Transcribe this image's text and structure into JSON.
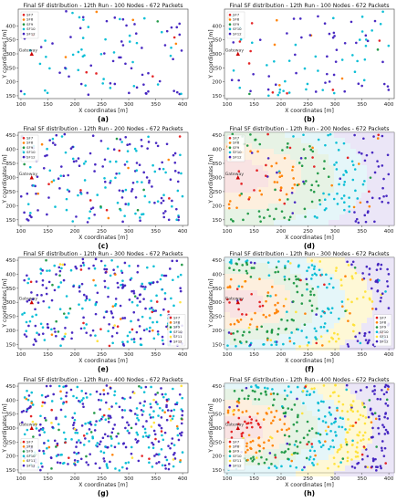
{
  "chart_data": [
    {
      "panel": "(a)",
      "type": "scatter",
      "title": "Final SF distribution - 12th Run - 100 Nodes - 672 Packets",
      "xlabel": "X coordinates [m]",
      "ylabel": "Y coordinates [m]",
      "gateway_label": "Gateway",
      "xlim": [
        95,
        410
      ],
      "ylim": [
        140,
        460
      ],
      "xticks": [
        100,
        150,
        200,
        250,
        300,
        350,
        400
      ],
      "yticks": [
        150,
        200,
        250,
        300,
        350,
        400
      ],
      "legend": {
        "position": "top-left",
        "entries": [
          "SF7",
          "SF8",
          "SF9",
          "SF10",
          "SF12"
        ]
      },
      "gateway": {
        "x": 120,
        "y": 300
      },
      "node_count": 100,
      "seed": 11
    },
    {
      "panel": "(b)",
      "type": "scatter",
      "title": "Final SF distribution - 12th Run - 100 Nodes - 672 Packets",
      "xlabel": "X coordinates [m]",
      "ylabel": "Y coordinates [m]",
      "gateway_label": "Gateway",
      "xlim": [
        95,
        410
      ],
      "ylim": [
        140,
        460
      ],
      "xticks": [
        100,
        150,
        200,
        250,
        300,
        350,
        400
      ],
      "yticks": [
        150,
        200,
        250,
        300,
        350,
        400
      ],
      "legend": {
        "position": "top-left",
        "entries": [
          "SF7",
          "SF8",
          "SF9",
          "SF10",
          "SF12"
        ]
      },
      "gateway": {
        "x": 120,
        "y": 300
      },
      "node_count": 100,
      "seed": 23
    },
    {
      "panel": "(c)",
      "type": "scatter",
      "title": "Final SF distribution - 12th Run - 200 Nodes - 672 Packets",
      "xlabel": "X coordinates [m]",
      "ylabel": "Y coordinates [m]",
      "gateway_label": "Gateway",
      "xlim": [
        95,
        410
      ],
      "ylim": [
        130,
        460
      ],
      "xticks": [
        100,
        150,
        200,
        250,
        300,
        350,
        400
      ],
      "yticks": [
        150,
        200,
        250,
        300,
        350,
        400,
        450
      ],
      "legend": {
        "position": "top-left",
        "entries": [
          "SF7",
          "SF8",
          "SF9",
          "SF10",
          "SF12"
        ]
      },
      "gateway": {
        "x": 120,
        "y": 300
      },
      "node_count": 200,
      "seed": 37
    },
    {
      "panel": "(d)",
      "type": "scatter",
      "title": "Final SF distribution - 12th Run - 200 Nodes - 672 Packets",
      "xlabel": "X coordinates [m]",
      "ylabel": "Y coordinates [m]",
      "gateway_label": "Gateway",
      "xlim": [
        95,
        410
      ],
      "ylim": [
        130,
        460
      ],
      "xticks": [
        100,
        150,
        200,
        250,
        300,
        350,
        400
      ],
      "yticks": [
        150,
        200,
        250,
        300,
        350,
        400,
        450
      ],
      "legend": {
        "position": "top-left",
        "entries": [
          "SF7",
          "SF8",
          "SF9",
          "SF10",
          "SF12"
        ]
      },
      "gateway": {
        "x": 120,
        "y": 300
      },
      "node_count": 200,
      "seed": 41
    },
    {
      "panel": "(e)",
      "type": "scatter",
      "title": "Final SF distribution - 12th Run - 300 Nodes - 672 Packets",
      "xlabel": "X coordinates [m]",
      "ylabel": "Y coordinates [m]",
      "gateway_label": "Gateway",
      "xlim": [
        95,
        410
      ],
      "ylim": [
        135,
        460
      ],
      "xticks": [
        100,
        150,
        200,
        250,
        300,
        350,
        400
      ],
      "yticks": [
        150,
        200,
        250,
        300,
        350,
        400,
        450
      ],
      "legend": {
        "position": "bottom-right",
        "entries": [
          "SF7",
          "SF8",
          "SF9",
          "SF10",
          "SF11",
          "SF12"
        ]
      },
      "gateway": {
        "x": 120,
        "y": 300
      },
      "node_count": 300,
      "seed": 53
    },
    {
      "panel": "(f)",
      "type": "scatter",
      "title": "Final SF distribution - 12th Run - 300 Nodes - 672 Packets",
      "xlabel": "X coordinates [m]",
      "ylabel": "Y coordinates [m]",
      "gateway_label": "Gateway",
      "xlim": [
        95,
        410
      ],
      "ylim": [
        135,
        460
      ],
      "xticks": [
        100,
        150,
        200,
        250,
        300,
        350,
        400
      ],
      "yticks": [
        150,
        200,
        250,
        300,
        350,
        400,
        450
      ],
      "legend": {
        "position": "bottom-right",
        "entries": [
          "SF7",
          "SF8",
          "SF9",
          "SF10",
          "SF11",
          "SF12"
        ]
      },
      "gateway": {
        "x": 120,
        "y": 300
      },
      "node_count": 300,
      "seed": 67
    },
    {
      "panel": "(g)",
      "type": "scatter",
      "title": "Final SF distribution - 12th Run - 400 Nodes - 672 Packets",
      "xlabel": "X coordinates [m]",
      "ylabel": "Y coordinates [m]",
      "gateway_label": "Gateway",
      "xlim": [
        95,
        410
      ],
      "ylim": [
        140,
        460
      ],
      "xticks": [
        100,
        150,
        200,
        250,
        300,
        350,
        400
      ],
      "yticks": [
        150,
        200,
        250,
        300,
        350,
        400,
        450
      ],
      "legend": {
        "position": "bottom-left",
        "entries": [
          "SF7",
          "SF8",
          "SF9",
          "SF10",
          "SF11",
          "SF12"
        ]
      },
      "gateway": {
        "x": 120,
        "y": 300
      },
      "node_count": 400,
      "seed": 79
    },
    {
      "panel": "(h)",
      "type": "scatter",
      "title": "Final SF distribution - 12th Run - 400 Nodes - 672 Packets",
      "xlabel": "X coordinates [m]",
      "ylabel": "Y coordinates [m]",
      "gateway_label": "Gateway",
      "xlim": [
        95,
        410
      ],
      "ylim": [
        140,
        460
      ],
      "xticks": [
        100,
        150,
        200,
        250,
        300,
        350,
        400
      ],
      "yticks": [
        150,
        200,
        250,
        300,
        350,
        400,
        450
      ],
      "legend": {
        "position": "bottom-left",
        "entries": [
          "SF7",
          "SF8",
          "SF9",
          "SF10",
          "SF11",
          "SF12"
        ]
      },
      "gateway": {
        "x": 120,
        "y": 300
      },
      "node_count": 400,
      "seed": 97
    }
  ],
  "sf_colors": {
    "SF7": "#e31a1c",
    "SF8": "#ff7f00",
    "SF9": "#1a9641",
    "SF10": "#00bcd4",
    "SF11": "#ffe135",
    "SF12": "#3f1fbf"
  },
  "zone_colors": {
    "SF7": "#f4cccc",
    "SF8": "#fbe1c2",
    "SF9": "#d3ead0",
    "SF10": "#cfeff4",
    "SF11": "#fdf3b4",
    "SF12": "#dad2f1"
  },
  "gateway_color": "#cc0000"
}
